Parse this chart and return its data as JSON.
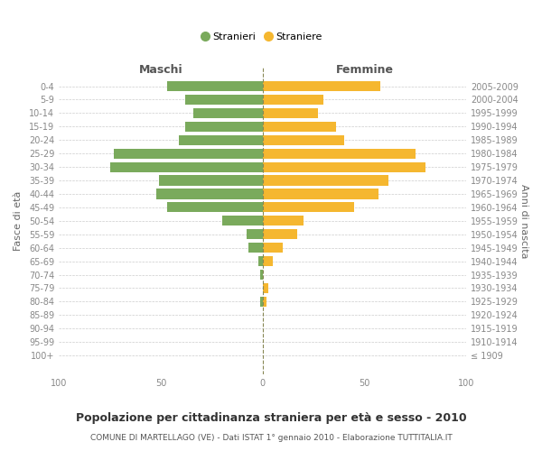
{
  "age_groups": [
    "100+",
    "95-99",
    "90-94",
    "85-89",
    "80-84",
    "75-79",
    "70-74",
    "65-69",
    "60-64",
    "55-59",
    "50-54",
    "45-49",
    "40-44",
    "35-39",
    "30-34",
    "25-29",
    "20-24",
    "15-19",
    "10-14",
    "5-9",
    "0-4"
  ],
  "birth_years": [
    "≤ 1909",
    "1910-1914",
    "1915-1919",
    "1920-1924",
    "1925-1929",
    "1930-1934",
    "1935-1939",
    "1940-1944",
    "1945-1949",
    "1950-1954",
    "1955-1959",
    "1960-1964",
    "1965-1969",
    "1970-1974",
    "1975-1979",
    "1980-1984",
    "1985-1989",
    "1990-1994",
    "1995-1999",
    "2000-2004",
    "2005-2009"
  ],
  "males": [
    0,
    0,
    0,
    0,
    1,
    0,
    1,
    2,
    7,
    8,
    20,
    47,
    52,
    51,
    75,
    73,
    41,
    38,
    34,
    38,
    47
  ],
  "females": [
    0,
    0,
    0,
    0,
    2,
    3,
    0,
    5,
    10,
    17,
    20,
    45,
    57,
    62,
    80,
    75,
    40,
    36,
    27,
    30,
    58
  ],
  "male_color": "#7aaa5c",
  "female_color": "#f5b730",
  "title": "Popolazione per cittadinanza straniera per età e sesso - 2010",
  "subtitle": "COMUNE DI MARTELLAGO (VE) - Dati ISTAT 1° gennaio 2010 - Elaborazione TUTTITALIA.IT",
  "xlabel_left": "Maschi",
  "xlabel_right": "Femmine",
  "ylabel_left": "Fasce di età",
  "ylabel_right": "Anni di nascita",
  "legend_males": "Stranieri",
  "legend_females": "Straniere",
  "xlim": 100,
  "bg_color": "#ffffff",
  "grid_color": "#cccccc"
}
